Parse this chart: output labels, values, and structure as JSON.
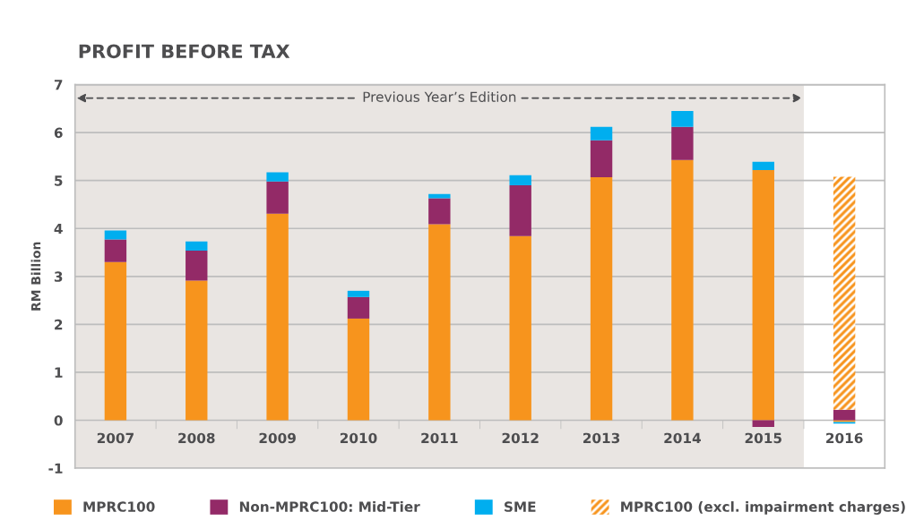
{
  "chart_data": {
    "type": "bar",
    "title": "PROFIT BEFORE TAX",
    "ylabel": "RM Billion",
    "categories": [
      "2007",
      "2008",
      "2009",
      "2010",
      "2011",
      "2012",
      "2013",
      "2014",
      "2015",
      "2016"
    ],
    "stacked": true,
    "series": [
      {
        "name": "MPRC100",
        "color": "#f7941d",
        "values": [
          3.3,
          2.91,
          4.31,
          2.12,
          4.09,
          3.84,
          5.07,
          5.43,
          5.22,
          -0.04
        ]
      },
      {
        "name": "Non-MPRC100: Mid-Tier",
        "color": "#932a67",
        "values": [
          0.47,
          0.63,
          0.67,
          0.45,
          0.54,
          1.06,
          0.77,
          0.69,
          -0.14,
          0.22
        ]
      },
      {
        "name": "SME",
        "color": "#00aeef",
        "values": [
          0.19,
          0.19,
          0.19,
          0.13,
          0.09,
          0.21,
          0.28,
          0.33,
          0.17,
          -0.03
        ]
      },
      {
        "name": "MPRC100 (excl. impairment charges)",
        "color": "#f7941d",
        "values": [
          null,
          null,
          null,
          null,
          null,
          null,
          null,
          null,
          null,
          4.86
        ]
      }
    ],
    "ylim": [
      -1,
      7
    ],
    "yticks": [
      -1,
      0,
      1,
      2,
      3,
      4,
      5,
      6,
      7
    ],
    "grid": "y",
    "legend": "bottom",
    "bands": [
      {
        "axis": "x",
        "from": "2007",
        "to": "2015",
        "label": "Previous Year’s Edition",
        "color": "#e9e5e2"
      }
    ]
  }
}
